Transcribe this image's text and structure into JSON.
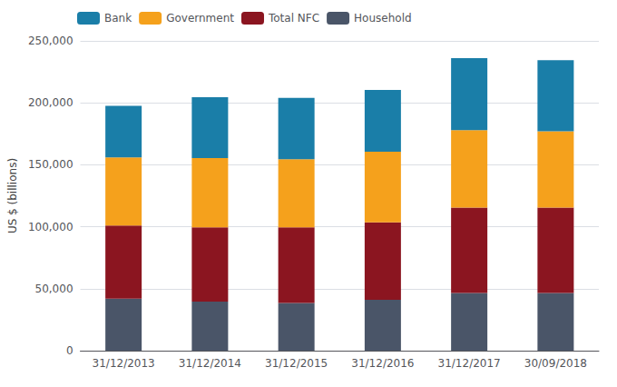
{
  "chart_data": {
    "type": "bar",
    "stacked": true,
    "categories": [
      "31/12/2013",
      "31/12/2014",
      "31/12/2015",
      "31/12/2016",
      "31/12/2017",
      "30/09/2018"
    ],
    "series": [
      {
        "name": "Household",
        "color": "#4a5568",
        "values": [
          42000,
          39500,
          38500,
          41000,
          46500,
          46500
        ]
      },
      {
        "name": "Total NFC",
        "color": "#8b1520",
        "values": [
          59000,
          60000,
          61000,
          62500,
          69000,
          69000
        ]
      },
      {
        "name": "Government",
        "color": "#f5a11c",
        "values": [
          55000,
          56000,
          55000,
          57000,
          62500,
          61500
        ]
      },
      {
        "name": "Bank",
        "color": "#1a7ea8",
        "values": [
          41500,
          49000,
          49500,
          50000,
          58000,
          57500
        ]
      }
    ],
    "ylabel": "US $ (billions)",
    "ylim": [
      0,
      250000
    ],
    "yticks": [
      0,
      {
        "value": 50000,
        "label": "50,000"
      },
      {
        "value": 100000,
        "label": "100,000"
      },
      {
        "value": 150000,
        "label": "150,000"
      },
      {
        "value": 200000,
        "label": "200,000"
      },
      {
        "value": 250000,
        "label": "250,000"
      }
    ],
    "grid": true,
    "legend": "upper left"
  }
}
